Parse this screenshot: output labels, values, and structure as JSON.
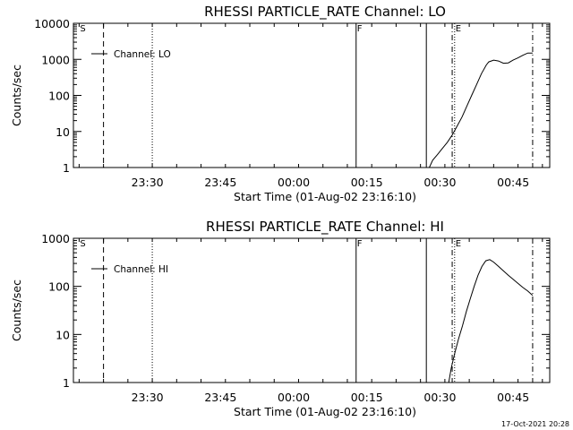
{
  "footer": {
    "timestamp": "17-Oct-2021 20:28"
  },
  "chart_data": [
    {
      "type": "line",
      "title": "RHESSI PARTICLE_RATE Channel: LO",
      "xlabel": "Start Time (01-Aug-02 23:16:10)",
      "ylabel": "Counts/sec",
      "yscale": "log",
      "ylim": [
        1,
        10000
      ],
      "xlim_minutes": [
        -1.17,
        96.5
      ],
      "xticks": [
        {
          "min": 14,
          "label": "23:30"
        },
        {
          "min": 29,
          "label": "23:45"
        },
        {
          "min": 44,
          "label": "00:00"
        },
        {
          "min": 59,
          "label": "00:15"
        },
        {
          "min": 74,
          "label": "00:30"
        },
        {
          "min": 89,
          "label": "00:45"
        }
      ],
      "yticks": [
        {
          "v": 1,
          "label": "1"
        },
        {
          "v": 10,
          "label": "10"
        },
        {
          "v": 100,
          "label": "100"
        },
        {
          "v": 1000,
          "label": "1000"
        },
        {
          "v": 10000,
          "label": "10000"
        }
      ],
      "legend": {
        "label": "Channel: LO",
        "placement": "top-left"
      },
      "markers": [
        {
          "min": 0,
          "label": "S",
          "style": "none"
        },
        {
          "min": 5,
          "label": "",
          "style": "dashed"
        },
        {
          "min": 15,
          "label": "",
          "style": "dotted"
        },
        {
          "min": 56.8,
          "label": "F",
          "style": "solid"
        },
        {
          "min": 71.2,
          "label": "",
          "style": "solid"
        },
        {
          "min": 76.5,
          "label": "",
          "style": "dashdot"
        },
        {
          "min": 77,
          "label": "E",
          "style": "dotted"
        },
        {
          "min": 93,
          "label": "",
          "style": "dashdot"
        }
      ],
      "series": [
        {
          "x": [
            71.8,
            72.5,
            73.5,
            74.5,
            75.5,
            76.5,
            77.5,
            78.5,
            79.5,
            80.5,
            81.5,
            82.5,
            83.5,
            84,
            85,
            86,
            87,
            88,
            89,
            90,
            91,
            92,
            93
          ],
          "y": [
            1,
            1.6,
            2.3,
            3.4,
            5,
            8,
            14,
            25,
            50,
            100,
            200,
            400,
            700,
            850,
            950,
            900,
            780,
            800,
            950,
            1100,
            1300,
            1500,
            1500
          ]
        }
      ]
    },
    {
      "type": "line",
      "title": "RHESSI PARTICLE_RATE Channel: HI",
      "xlabel": "Start Time (01-Aug-02 23:16:10)",
      "ylabel": "Counts/sec",
      "yscale": "log",
      "ylim": [
        1,
        1000
      ],
      "xlim_minutes": [
        -1.17,
        96.5
      ],
      "xticks": [
        {
          "min": 14,
          "label": "23:30"
        },
        {
          "min": 29,
          "label": "23:45"
        },
        {
          "min": 44,
          "label": "00:00"
        },
        {
          "min": 59,
          "label": "00:15"
        },
        {
          "min": 74,
          "label": "00:30"
        },
        {
          "min": 89,
          "label": "00:45"
        }
      ],
      "yticks": [
        {
          "v": 1,
          "label": "1"
        },
        {
          "v": 10,
          "label": "10"
        },
        {
          "v": 100,
          "label": "100"
        },
        {
          "v": 1000,
          "label": "1000"
        }
      ],
      "legend": {
        "label": "Channel: HI",
        "placement": "top-left"
      },
      "markers": [
        {
          "min": 0,
          "label": "S",
          "style": "none"
        },
        {
          "min": 5,
          "label": "",
          "style": "dashed"
        },
        {
          "min": 15,
          "label": "",
          "style": "dotted"
        },
        {
          "min": 56.8,
          "label": "F",
          "style": "solid"
        },
        {
          "min": 71.2,
          "label": "",
          "style": "solid"
        },
        {
          "min": 76.5,
          "label": "",
          "style": "dashdot"
        },
        {
          "min": 77,
          "label": "E",
          "style": "dotted"
        },
        {
          "min": 93,
          "label": "",
          "style": "dashdot"
        }
      ],
      "series": [
        {
          "x": [
            75.8,
            76.3,
            77,
            77.8,
            78.6,
            79.4,
            80.2,
            81,
            81.8,
            82.6,
            83.4,
            84.2,
            85,
            86,
            87,
            88,
            89,
            90,
            91,
            92,
            93
          ],
          "y": [
            1,
            2,
            4,
            8,
            15,
            30,
            55,
            100,
            170,
            260,
            340,
            360,
            320,
            260,
            210,
            170,
            140,
            115,
            95,
            80,
            65
          ]
        }
      ]
    }
  ]
}
